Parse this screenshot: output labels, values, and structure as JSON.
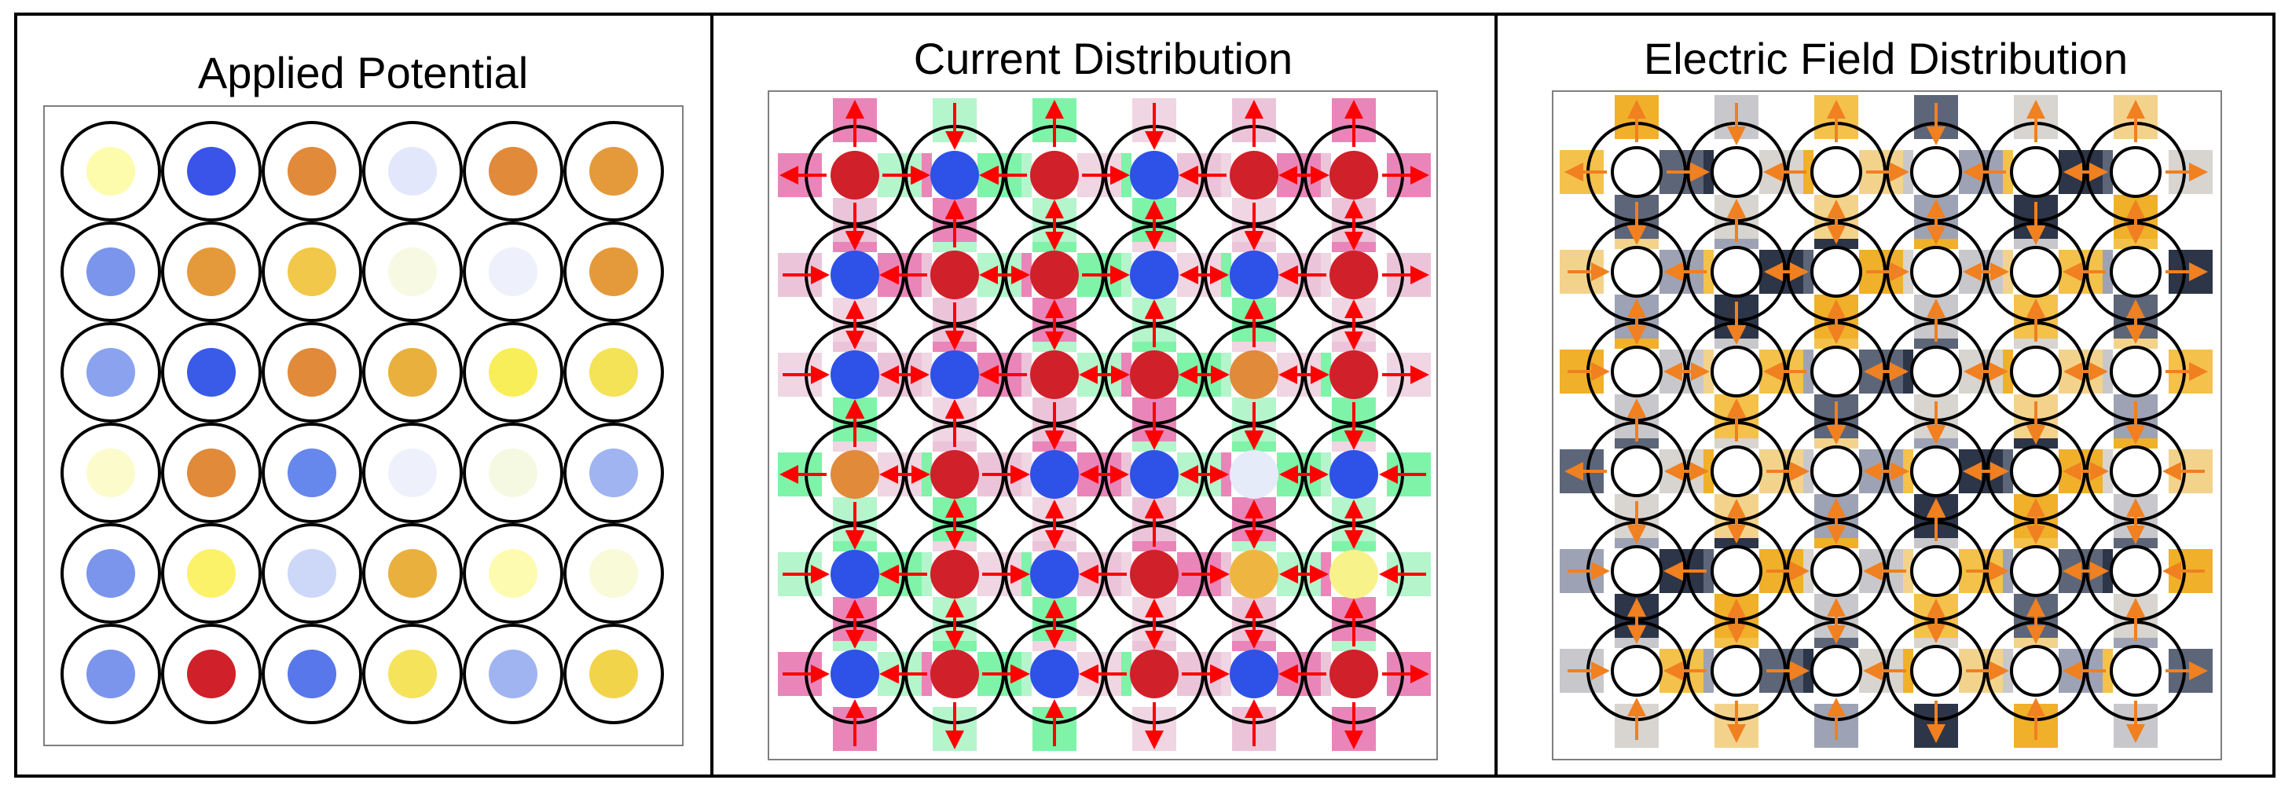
{
  "panels": [
    {
      "id": "applied",
      "title": "Applied Potential"
    },
    {
      "id": "current",
      "title": "Current Distribution"
    },
    {
      "id": "efield",
      "title": "Electric Field Distribution"
    }
  ],
  "legend": {
    "current_dot_colors": {
      "r": "#d0202a",
      "b": "#2e51e8",
      "o": "#e08a3a",
      "y": "#f7f38a",
      "w": "#e6ebfa"
    },
    "flux_colors": {
      "in": "#e985b9",
      "out": "#7ff3a8",
      "neutral": "#d7d7d7"
    },
    "field_colors": {
      "positive": "#f0b02a",
      "negative": "#2d3548"
    },
    "arrow_colors": {
      "current": "#ff0000",
      "field": "#f08020"
    }
  },
  "applied_grid": [
    [
      "#fdfcad",
      "#3a53e8",
      "#e08a3a",
      "#e2e7fb",
      "#e08a3a",
      "#e49a3b"
    ],
    [
      "#7b95ec",
      "#e49a3b",
      "#f2c84a",
      "#f7f9e2",
      "#eef0fb",
      "#e49a3b"
    ],
    [
      "#8ba3ee",
      "#3a5ae8",
      "#e08a3a",
      "#eab03e",
      "#f8ee59",
      "#f4e257"
    ],
    [
      "#fcfbcc",
      "#e08a3a",
      "#6687ec",
      "#eef1fc",
      "#f5f9e2",
      "#9fb4f1"
    ],
    [
      "#7b95ec",
      "#fbf26a",
      "#cdd8f8",
      "#eab03e",
      "#fdfbb0",
      "#f8fad8"
    ],
    [
      "#7b95ec",
      "#d0202a",
      "#5877ea",
      "#f5e35c",
      "#9fb4f1",
      "#f2d44a"
    ]
  ],
  "current_grid": [
    [
      "r",
      "b",
      "r",
      "b",
      "r",
      "r"
    ],
    [
      "b",
      "r",
      "r",
      "b",
      "b",
      "r"
    ],
    [
      "b",
      "b",
      "r",
      "r",
      "o",
      "r"
    ],
    [
      "o",
      "r",
      "b",
      "b",
      "w",
      "b"
    ],
    [
      "b",
      "r",
      "b",
      "r",
      "g",
      "y"
    ],
    [
      "b",
      "r",
      "b",
      "r",
      "b",
      "r"
    ]
  ]
}
